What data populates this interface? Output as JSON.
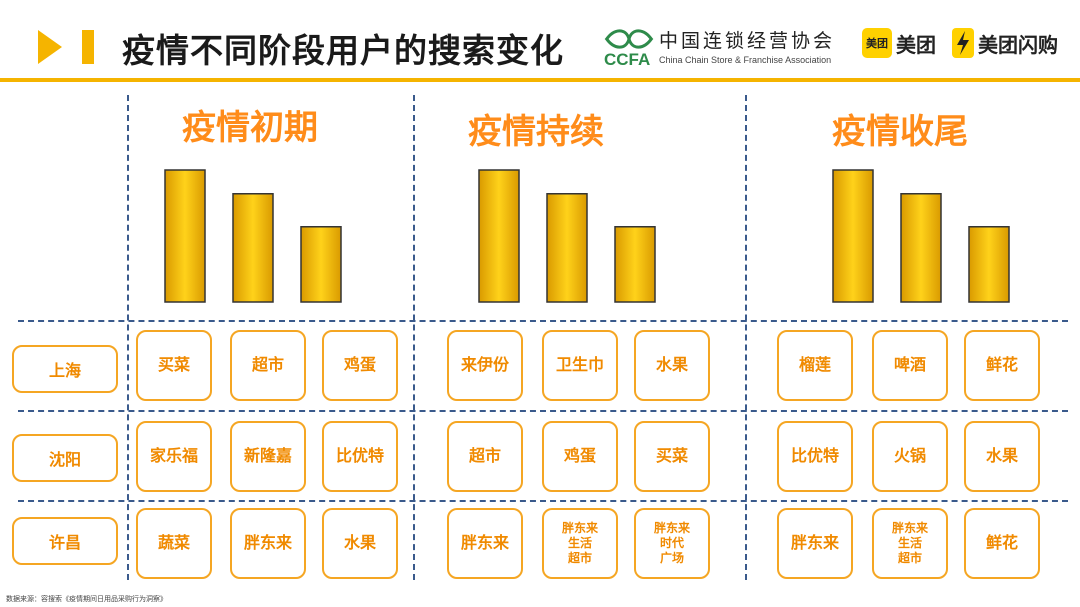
{
  "header": {
    "title": "疫情不同阶段用户的搜索变化",
    "ccfa": {
      "abbr": "CCFA",
      "name_cn": "中国连锁经营协会",
      "name_en": "China Chain Store & Franchise Association"
    },
    "meituan": {
      "badge": "美团",
      "name": "美团"
    },
    "shangou": {
      "name": "美团闪购"
    },
    "accent_color": "#f5b400"
  },
  "phases": [
    "疫情初期",
    "疫情持续",
    "疫情收尾"
  ],
  "cities": [
    "上海",
    "沈阳",
    "许昌"
  ],
  "grid": [
    [
      [
        "买菜",
        "超市",
        "鸡蛋"
      ],
      [
        "来伊份",
        "卫生巾",
        "水果"
      ],
      [
        "榴莲",
        "啤酒",
        "鲜花"
      ]
    ],
    [
      [
        "家乐福",
        "新隆嘉",
        "比优特"
      ],
      [
        "超市",
        "鸡蛋",
        "买菜"
      ],
      [
        "比优特",
        "火锅",
        "水果"
      ]
    ],
    [
      [
        "蔬菜",
        "胖东来",
        "水果"
      ],
      [
        "胖东来",
        "胖东来\n生活\n超市",
        "胖东来\n时代\n广场"
      ],
      [
        "胖东来",
        "胖东来\n生活\n超市",
        "鲜花"
      ]
    ]
  ],
  "chart_data": {
    "type": "bar",
    "title": "",
    "categories": [
      "疫情初期",
      "疫情持续",
      "疫情收尾"
    ],
    "series": [
      {
        "values": [
          100,
          100,
          100
        ]
      },
      {
        "values": [
          82,
          82,
          82
        ]
      },
      {
        "values": [
          57,
          57,
          57
        ]
      }
    ],
    "ylim": [
      0,
      100
    ],
    "grid": false,
    "legend": "none",
    "bar_color": "#f5b400"
  },
  "source_note": "数据来源：容搜索《疫情期间日用品采购行为洞察》"
}
